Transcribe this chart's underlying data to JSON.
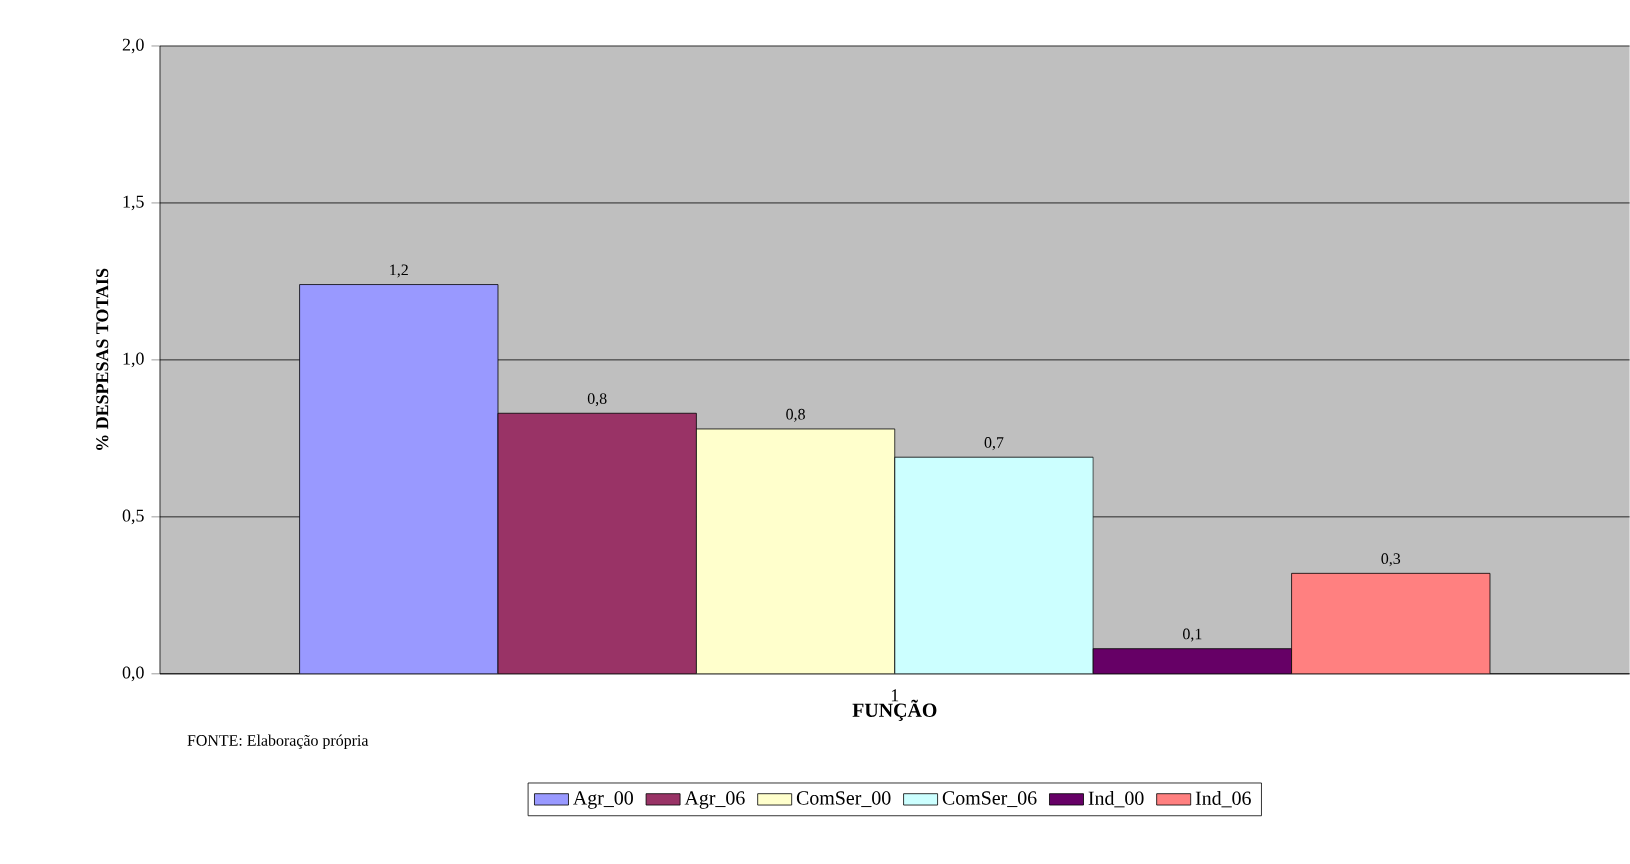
{
  "chart_data": {
    "type": "bar",
    "xlabel": "FUNÇÃO",
    "ylabel": "% DESPESAS TOTAIS",
    "categories": [
      "1"
    ],
    "series": [
      {
        "name": "Agr_00",
        "color": "#9999ff",
        "values": [
          1.24
        ],
        "value_labels": [
          "1,2"
        ]
      },
      {
        "name": "Agr_06",
        "color": "#993366",
        "values": [
          0.83
        ],
        "value_labels": [
          "0,8"
        ]
      },
      {
        "name": "ComSer_00",
        "color": "#ffffcc",
        "values": [
          0.78
        ],
        "value_labels": [
          "0,8"
        ]
      },
      {
        "name": "ComSer_06",
        "color": "#ccffff",
        "values": [
          0.69
        ],
        "value_labels": [
          "0,7"
        ]
      },
      {
        "name": "Ind_00",
        "color": "#660066",
        "values": [
          0.08
        ],
        "value_labels": [
          "0,1"
        ]
      },
      {
        "name": "Ind_06",
        "color": "#ff8080",
        "values": [
          0.32
        ],
        "value_labels": [
          "0,3"
        ]
      }
    ],
    "ylim": [
      0,
      2
    ],
    "yticks": [
      {
        "value": 0,
        "label": "0,0"
      },
      {
        "value": 0.5,
        "label": "0,5"
      },
      {
        "value": 1,
        "label": "1,0"
      },
      {
        "value": 1.5,
        "label": "1,5"
      },
      {
        "value": 2,
        "label": "2,0"
      }
    ],
    "grid": "y",
    "legend": "bottom",
    "annotations": [
      "FONTE: Elaboração própria"
    ]
  }
}
